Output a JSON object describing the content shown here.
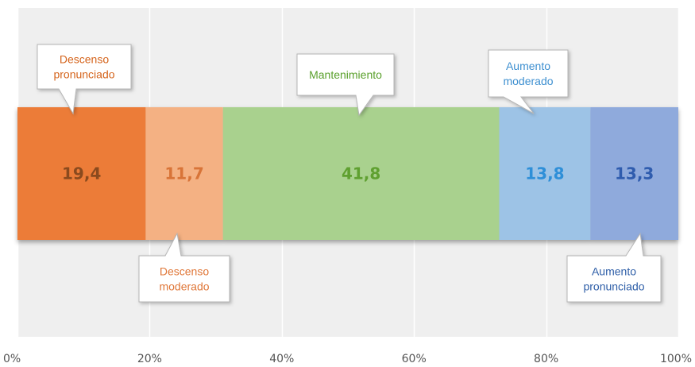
{
  "chart_data": {
    "type": "bar",
    "orientation": "horizontal-stacked-100",
    "xlim": [
      0,
      100
    ],
    "grid": true,
    "x_ticks": [
      "0%",
      "20%",
      "40%",
      "60%",
      "80%",
      "100%"
    ],
    "segments": [
      {
        "key": "descenso_pronunciado",
        "value": 19.4,
        "value_label": "19,4",
        "label_lines": [
          "Descenso",
          "pronunciado"
        ],
        "color": "#ec7c37",
        "text_color": "#8a4a1e",
        "label_color": "#d5641c",
        "callout_side": "top"
      },
      {
        "key": "descenso_moderado",
        "value": 11.7,
        "value_label": "11,7",
        "label_lines": [
          "Descenso",
          "moderado"
        ],
        "color": "#f4b183",
        "text_color": "#d87438",
        "label_color": "#e0783a",
        "callout_side": "bottom"
      },
      {
        "key": "mantenimiento",
        "value": 41.8,
        "value_label": "41,8",
        "label_lines": [
          "Mantenimiento"
        ],
        "color": "#a9d18e",
        "text_color": "#5fa030",
        "label_color": "#5aa02c",
        "callout_side": "top"
      },
      {
        "key": "aumento_moderado",
        "value": 13.8,
        "value_label": "13,8",
        "label_lines": [
          "Aumento",
          "moderado"
        ],
        "color": "#9dc3e6",
        "text_color": "#2e8fd8",
        "label_color": "#3d8fd0",
        "callout_side": "top"
      },
      {
        "key": "aumento_pronunciado",
        "value": 13.3,
        "value_label": "13,3",
        "label_lines": [
          "Aumento",
          "pronunciado"
        ],
        "color": "#8faadc",
        "text_color": "#2f5cae",
        "label_color": "#2f5fa8",
        "callout_side": "bottom"
      }
    ]
  },
  "colors": {
    "plot_background": "#efefef",
    "grid_line": "#ffffff",
    "callout_fill": "#ffffff",
    "callout_stroke": "#b5b5b5"
  }
}
